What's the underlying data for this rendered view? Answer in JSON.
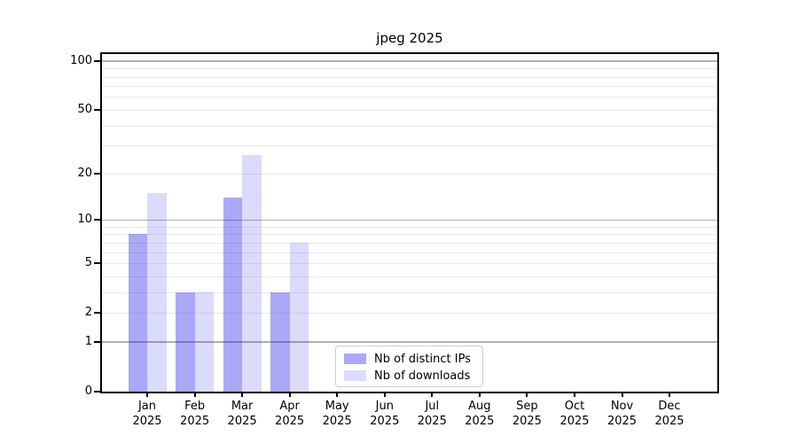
{
  "chart_data": {
    "type": "bar",
    "title": "jpeg 2025",
    "categories": [
      "Jan",
      "Feb",
      "Mar",
      "Apr",
      "May",
      "Jun",
      "Jul",
      "Aug",
      "Sep",
      "Oct",
      "Nov",
      "Dec"
    ],
    "category_year": "2025",
    "series": [
      {
        "name": "Nb of distinct IPs",
        "values": [
          8,
          3,
          14,
          3,
          0,
          0,
          0,
          0,
          0,
          0,
          0,
          0
        ],
        "color": "rgba(30, 30, 235, 0.38)",
        "color_flat": "#a8a8f7"
      },
      {
        "name": "Nb of downloads",
        "values": [
          15,
          3,
          26,
          7,
          0,
          0,
          0,
          0,
          0,
          0,
          0,
          0
        ],
        "color": "rgba(30, 30, 235, 0.16)",
        "color_flat": "#dbdbfa"
      }
    ],
    "xlabel": "",
    "ylabel": "",
    "yscale": "log1p",
    "ylim": [
      0,
      110
    ],
    "y_ticks": [
      0,
      1,
      2,
      5,
      10,
      20,
      50,
      100
    ],
    "y_major_gridlines": [
      1,
      10,
      100
    ],
    "y_minor_gridlines": [
      2,
      3,
      4,
      5,
      6,
      7,
      8,
      9,
      20,
      30,
      40,
      50,
      60,
      70,
      80,
      90
    ],
    "grid": "on",
    "legend_position": "lower center"
  },
  "colors": {
    "background": "#ffffff",
    "spine": "#000000",
    "grid_major": "#b0b0b0",
    "grid_minor": "#e9e9e9",
    "legend_border": "#cccccc",
    "text": "#000000"
  }
}
